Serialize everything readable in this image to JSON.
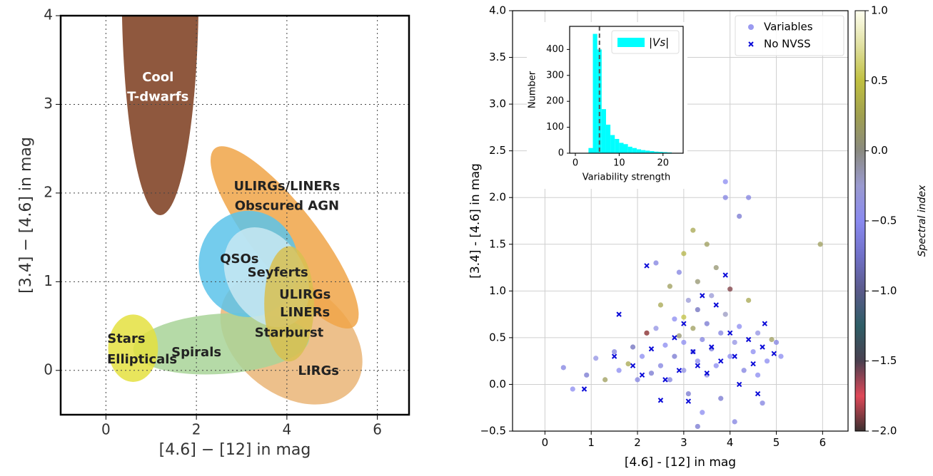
{
  "chart_data": [
    {
      "type": "region",
      "xlabel": "[4.6] − [12] in mag",
      "ylabel": "[3.4] − [4.6] in mag",
      "xlim": [
        -1,
        6.7
      ],
      "ylim": [
        -0.5,
        4
      ],
      "xticks": [
        0,
        2,
        4,
        6
      ],
      "yticks": [
        0,
        1,
        2,
        3,
        4
      ],
      "grid": true,
      "regions": [
        {
          "color": "#7b3b1c",
          "x": 1.2,
          "y": 4.3,
          "rx": 0.85,
          "ry": 2.55,
          "angle": 0
        },
        {
          "color": "#eab577",
          "x": 4.1,
          "y": 0.35,
          "rx": 1.75,
          "ry": 0.62,
          "angle": 38
        },
        {
          "color": "#f0a448",
          "x": 3.95,
          "y": 1.5,
          "rx": 2.5,
          "ry": 0.36,
          "angle": 52
        },
        {
          "color": "#a8d498",
          "x": 2.55,
          "y": 0.3,
          "rx": 1.95,
          "ry": 0.34,
          "angle": -4
        },
        {
          "color": "#e4e040",
          "x": 0.6,
          "y": 0.25,
          "rx": 0.55,
          "ry": 0.38,
          "angle": 0
        },
        {
          "color": "#5cc3ea",
          "x": 3.15,
          "y": 1.2,
          "rx": 1.1,
          "ry": 0.6,
          "angle": 0
        },
        {
          "color": "#c8e8f2",
          "x": 3.55,
          "y": 1.05,
          "rx": 0.85,
          "ry": 0.6,
          "angle": -30
        },
        {
          "color": "#d8c050",
          "x": 4.05,
          "y": 0.75,
          "rx": 0.55,
          "ry": 0.65,
          "angle": 0
        }
      ],
      "labels": [
        {
          "text": "Cool",
          "x": 1.15,
          "y": 3.3,
          "color": "#ffffff"
        },
        {
          "text": "T-dwarfs",
          "x": 1.15,
          "y": 3.08,
          "color": "#ffffff"
        },
        {
          "text": "ULIRGs/LINERs",
          "x": 4.0,
          "y": 2.07,
          "color": "#222222"
        },
        {
          "text": "Obscured AGN",
          "x": 4.0,
          "y": 1.85,
          "color": "#222222"
        },
        {
          "text": "QSOs",
          "x": 2.95,
          "y": 1.25,
          "color": "#222222"
        },
        {
          "text": "Seyferts",
          "x": 3.8,
          "y": 1.1,
          "color": "#222222"
        },
        {
          "text": "ULIRGs",
          "x": 4.4,
          "y": 0.85,
          "color": "#222222"
        },
        {
          "text": "LINERs",
          "x": 4.4,
          "y": 0.65,
          "color": "#222222"
        },
        {
          "text": "Starburst",
          "x": 4.05,
          "y": 0.42,
          "color": "#222222"
        },
        {
          "text": "Stars",
          "x": 0.45,
          "y": 0.35,
          "color": "#222222"
        },
        {
          "text": "Ellipticals",
          "x": 0.8,
          "y": 0.12,
          "color": "#222222"
        },
        {
          "text": "Spirals",
          "x": 2.0,
          "y": 0.2,
          "color": "#222222"
        },
        {
          "text": "LIRGs",
          "x": 4.7,
          "y": -0.01,
          "color": "#222222"
        }
      ]
    },
    {
      "type": "scatter",
      "xlabel": "[4.6] - [12] in mag",
      "ylabel": "[3.4] - [4.6] in mag",
      "xlim": [
        -0.7,
        6.55
      ],
      "ylim": [
        -0.5,
        4
      ],
      "xticks": [
        0,
        1,
        2,
        3,
        4,
        5,
        6
      ],
      "yticks": [
        {
          "value": -0.5,
          "label": "−0.5"
        },
        {
          "value": 0,
          "label": "0.0"
        },
        0.5,
        {
          "value": 1,
          "label": "1.0"
        },
        1.5,
        {
          "value": 2,
          "label": "2.0"
        },
        2.5,
        {
          "value": 3,
          "label": "3.0"
        },
        3.5,
        {
          "value": 4,
          "label": "4.0"
        }
      ],
      "grid": true,
      "legend": "upper right",
      "series": [
        {
          "name": "Variables",
          "marker": "o",
          "color": "#9a9af0",
          "x": [
            0.4,
            0.6,
            0.9,
            1.1,
            1.3,
            1.5,
            1.6,
            1.8,
            1.9,
            2.0,
            2.1,
            2.2,
            2.3,
            2.4,
            2.5,
            2.5,
            2.6,
            2.7,
            2.7,
            2.8,
            2.8,
            2.9,
            2.9,
            3.0,
            3.0,
            3.0,
            3.1,
            3.1,
            3.2,
            3.2,
            3.2,
            3.3,
            3.3,
            3.3,
            3.4,
            3.4,
            3.5,
            3.5,
            3.5,
            3.6,
            3.6,
            3.7,
            3.7,
            3.8,
            3.8,
            3.9,
            3.9,
            4.0,
            4.0,
            4.1,
            4.1,
            4.2,
            4.2,
            4.3,
            4.4,
            4.5,
            4.6,
            4.7,
            4.8,
            4.9,
            5.0,
            5.1,
            5.95,
            3.9,
            2.4,
            3.3,
            4.4,
            2.2,
            3.0,
            4.6
          ],
          "y": [
            0.18,
            -0.05,
            0.1,
            0.28,
            0.05,
            0.35,
            0.15,
            0.22,
            0.4,
            0.05,
            0.3,
            0.55,
            0.12,
            0.6,
            0.2,
            0.85,
            0.42,
            0.05,
            1.05,
            0.3,
            0.7,
            0.52,
            1.2,
            0.15,
            0.45,
            1.4,
            0.9,
            -0.1,
            0.35,
            0.6,
            1.65,
            0.25,
            0.8,
            1.1,
            0.48,
            -0.3,
            0.65,
            1.5,
            0.1,
            0.38,
            0.95,
            0.2,
            1.25,
            0.55,
            -0.15,
            0.75,
            2.0,
            0.3,
            1.02,
            0.45,
            -0.4,
            0.62,
            1.8,
            0.15,
            0.9,
            0.35,
            0.55,
            -0.2,
            0.25,
            0.48,
            0.45,
            0.3,
            1.5,
            2.17,
            1.3,
            -0.45,
            2.0,
            0.55,
            0.72,
            0.1
          ],
          "c": [
            -0.6,
            -0.5,
            -0.7,
            -0.4,
            0.2,
            -0.6,
            -0.5,
            0.3,
            -0.8,
            -0.6,
            -0.5,
            0.1,
            -0.7,
            -0.4,
            -0.6,
            0.3,
            -0.5,
            -0.6,
            0.2,
            -0.7,
            -0.5,
            0.1,
            -0.6,
            -0.4,
            -0.5,
            0.4,
            -0.3,
            -0.7,
            -0.6,
            0.2,
            0.3,
            -0.5,
            -0.8,
            0.1,
            -0.6,
            -0.5,
            -0.7,
            0.2,
            -0.4,
            -0.6,
            -0.3,
            -0.5,
            0.1,
            -0.6,
            -0.7,
            -0.2,
            -0.6,
            -0.5,
            -1.9,
            -0.4,
            -0.6,
            -0.5,
            -0.7,
            -0.6,
            0.3,
            -0.5,
            -0.4,
            -0.6,
            -0.5,
            0.2,
            -0.6,
            -0.5,
            0.2,
            -0.5,
            -0.6,
            -0.7,
            -0.6,
            -1.85,
            0.5,
            -0.5
          ]
        },
        {
          "name": "No NVSS",
          "marker": "x",
          "color": "#0a0ad8",
          "x": [
            0.85,
            1.6,
            1.5,
            1.9,
            2.1,
            2.2,
            2.3,
            2.5,
            2.6,
            2.8,
            2.9,
            3.0,
            3.1,
            3.2,
            3.3,
            3.4,
            3.5,
            3.6,
            3.7,
            3.8,
            3.9,
            4.0,
            4.1,
            4.2,
            4.4,
            4.5,
            4.6,
            4.7,
            4.75,
            4.95
          ],
          "y": [
            -0.05,
            0.75,
            0.3,
            0.2,
            0.1,
            1.27,
            0.38,
            -0.17,
            0.05,
            0.5,
            0.15,
            0.65,
            -0.18,
            0.35,
            0.2,
            0.95,
            0.12,
            0.4,
            0.85,
            0.25,
            1.17,
            0.55,
            0.3,
            0.0,
            0.48,
            0.22,
            -0.1,
            0.4,
            0.65,
            0.33
          ]
        }
      ],
      "colorbar": {
        "label": "Spectral index",
        "lim": [
          -2,
          1
        ],
        "ticks": [
          {
            "value": 1,
            "label": "1.0"
          },
          0.5,
          {
            "value": 0,
            "label": "0.0"
          },
          {
            "value": -0.5,
            "label": "−0.5"
          },
          {
            "value": -1,
            "label": "−1.0"
          },
          {
            "value": -1.5,
            "label": "−1.5"
          },
          {
            "value": -2,
            "label": "−2.0"
          }
        ],
        "colors": [
          "#3a3030",
          "#e04858",
          "#4a4050",
          "#2e5e66",
          "#5a5a8a",
          "#7070c8",
          "#8a8af0",
          "#9a9ad0",
          "#8a8a80",
          "#a0a050",
          "#c0c040",
          "#e0e0a0",
          "#fffff0"
        ]
      }
    },
    {
      "type": "histogram",
      "xlabel": "Variability strength",
      "ylabel": "Number",
      "xlim": [
        -1.3,
        24.6
      ],
      "ylim": [
        0,
        489
      ],
      "xticks": [
        0,
        10,
        20
      ],
      "yticks": [
        0,
        100,
        200,
        300,
        400
      ],
      "bins": [
        3,
        4,
        5,
        6,
        7,
        8,
        9,
        10,
        11,
        12,
        13,
        14,
        15,
        16,
        17,
        18,
        19,
        20,
        21,
        22
      ],
      "series": [
        {
          "name": "|Vs|",
          "color": "#00ffff",
          "values": [
            20,
            460,
            400,
            170,
            110,
            70,
            55,
            40,
            35,
            25,
            20,
            15,
            12,
            10,
            8,
            6,
            5,
            4,
            3
          ]
        }
      ],
      "vline": 5.5,
      "legend": "upper right"
    }
  ]
}
